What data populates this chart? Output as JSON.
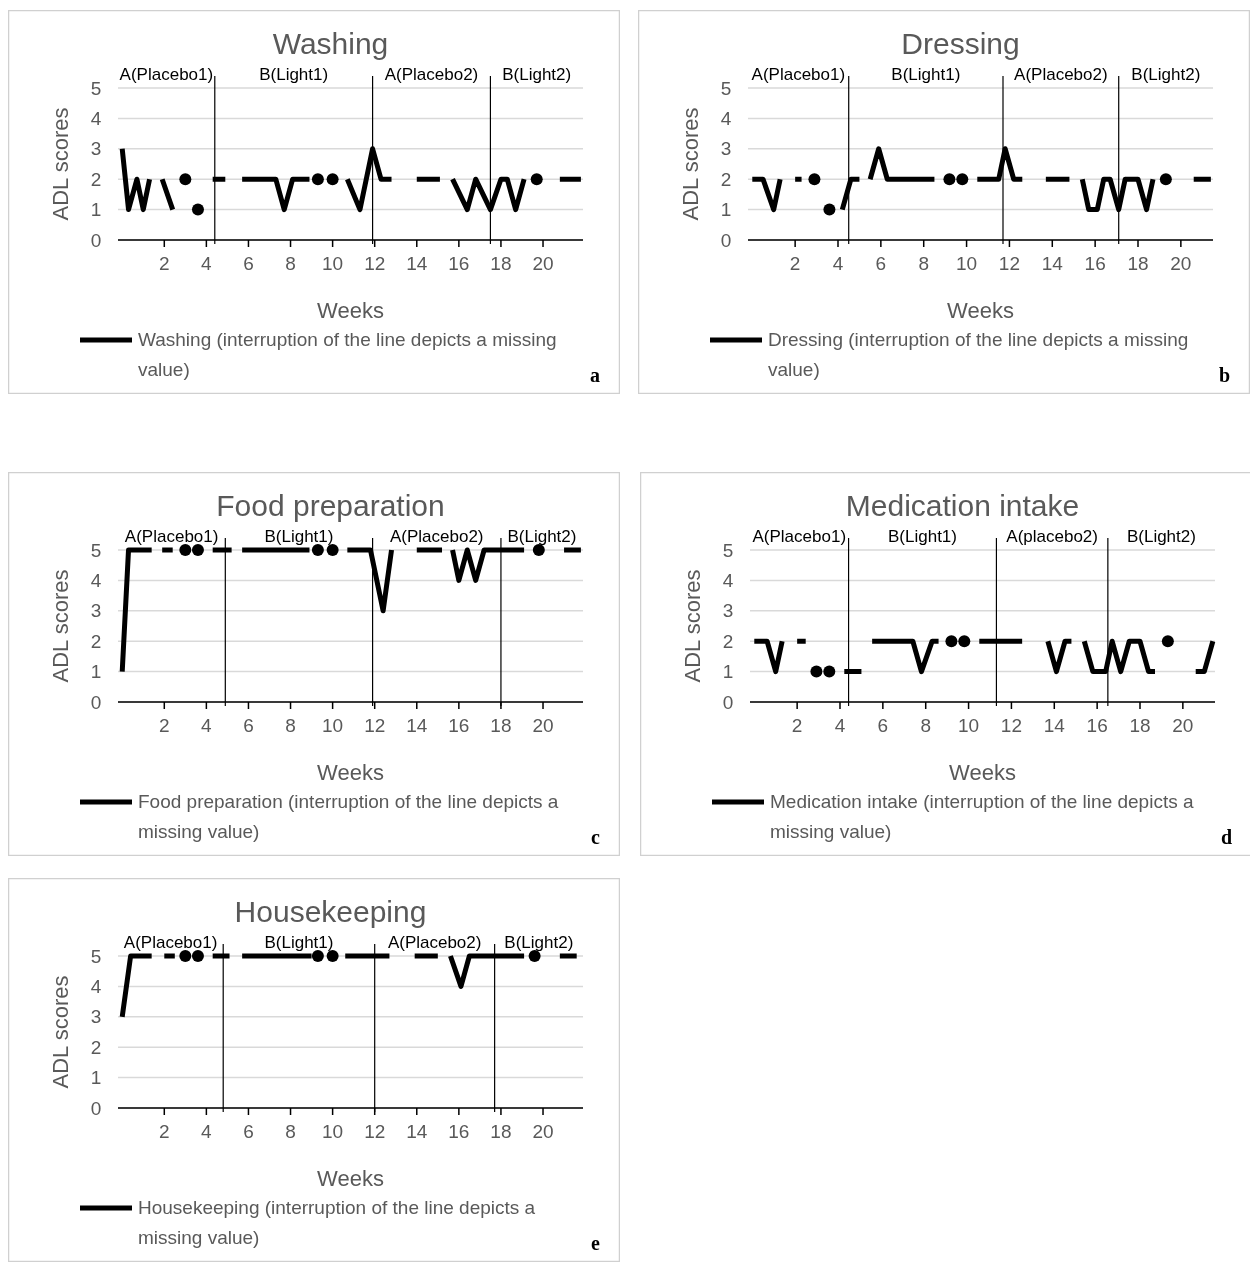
{
  "chart_data": [
    {
      "type": "line",
      "title": "Washing",
      "xlabel": "Weeks",
      "ylabel": "ADL scores",
      "xlim": [
        -0.2,
        21.9
      ],
      "ylim": [
        0,
        5
      ],
      "xticks": [
        2,
        4,
        6,
        8,
        10,
        12,
        14,
        16,
        18,
        20
      ],
      "yticks": [
        0,
        1,
        2,
        3,
        4,
        5
      ],
      "grid": "y",
      "legend": "bottom",
      "series": [
        {
          "name": "Washing (interruption of the line depicts a missing value)",
          "color": "#000000",
          "x": [
            0,
            0.3,
            0.7,
            1.0,
            1.3,
            1.6,
            1.9,
            2.4,
            2.7,
            3.0,
            3.3,
            3.6,
            4.0,
            4.3,
            4.9,
            5.3,
            5.7,
            7.3,
            7.7,
            8.1,
            8.9,
            9.1,
            9.3,
            9.6,
            10.0,
            10.3,
            10.7,
            11.3,
            11.9,
            12.3,
            12.8,
            13.4,
            14.0,
            15.1,
            15.4,
            15.7,
            16.4,
            16.8,
            17.5,
            18.0,
            18.3,
            18.7,
            19.1,
            19.4,
            19.7,
            20.2,
            20.8,
            21.8
          ],
          "values": [
            3,
            1,
            2,
            1,
            2,
            null,
            2,
            1,
            null,
            2,
            null,
            1,
            null,
            2,
            2,
            null,
            2,
            2,
            1,
            2,
            2,
            null,
            2,
            null,
            2,
            null,
            2,
            1,
            3,
            2,
            2,
            null,
            2,
            2,
            null,
            2,
            1,
            2,
            1,
            2,
            2,
            1,
            2,
            null,
            2,
            null,
            2,
            2
          ]
        }
      ],
      "ref_lines": [
        {
          "axis": "x",
          "value": 4.4,
          "color": "#000000"
        },
        {
          "axis": "x",
          "value": 11.9,
          "color": "#000000"
        },
        {
          "axis": "x",
          "value": 17.5,
          "color": "#000000"
        }
      ],
      "annotations": [
        "A(Placebo1)",
        "B(Light1)",
        "A(Placebo2)",
        "B(Light2)",
        "a"
      ]
    },
    {
      "type": "line",
      "title": "Dressing",
      "xlabel": "Weeks",
      "ylabel": "ADL scores",
      "xlim": [
        -0.2,
        21.5
      ],
      "ylim": [
        0,
        5
      ],
      "xticks": [
        2,
        4,
        6,
        8,
        10,
        12,
        14,
        16,
        18,
        20
      ],
      "yticks": [
        0,
        1,
        2,
        3,
        4,
        5
      ],
      "grid": "y",
      "legend": "bottom",
      "series": [
        {
          "name": "Dressing (interruption of the line depicts a missing value)",
          "color": "#000000",
          "x": [
            0,
            0.5,
            1.0,
            1.3,
            1.6,
            2.0,
            2.3,
            2.6,
            2.9,
            3.2,
            3.6,
            3.9,
            4.2,
            4.6,
            5.0,
            5.3,
            5.5,
            5.9,
            6.3,
            8.5,
            8.9,
            9.2,
            9.5,
            9.8,
            10.2,
            10.5,
            11.5,
            11.8,
            12.2,
            12.6,
            13.2,
            13.7,
            14.8,
            15.1,
            15.4,
            15.7,
            16.1,
            16.4,
            16.7,
            17.1,
            17.4,
            18.0,
            18.4,
            18.7,
            19.0,
            19.3,
            20.0,
            20.6,
            21.4
          ],
          "values": [
            2,
            2,
            1,
            2,
            null,
            2,
            2,
            null,
            2,
            null,
            1,
            null,
            1,
            2,
            2,
            null,
            2,
            3,
            2,
            2,
            null,
            2,
            null,
            2,
            null,
            2,
            2,
            3,
            2,
            2,
            null,
            2,
            2,
            null,
            2,
            1,
            1,
            2,
            2,
            1,
            2,
            2,
            1,
            2,
            null,
            2,
            null,
            2,
            2
          ]
        }
      ],
      "ref_lines": [
        {
          "axis": "x",
          "value": 4.5,
          "color": "#000000"
        },
        {
          "axis": "x",
          "value": 11.7,
          "color": "#000000"
        },
        {
          "axis": "x",
          "value": 17.1,
          "color": "#000000"
        }
      ],
      "annotations": [
        "A(Placebo1)",
        "B(Light1)",
        "A(Placebo2)",
        "B(Light2)",
        "b"
      ]
    },
    {
      "type": "line",
      "title": "Food preparation",
      "xlabel": "Weeks",
      "ylabel": "ADL scores",
      "xlim": [
        -0.2,
        21.9
      ],
      "ylim": [
        0,
        5
      ],
      "xticks": [
        2,
        4,
        6,
        8,
        10,
        12,
        14,
        16,
        18,
        20
      ],
      "yticks": [
        0,
        1,
        2,
        3,
        4,
        5
      ],
      "grid": "y",
      "legend": "bottom",
      "series": [
        {
          "name": "Food preparation (interruption of the line depicts a missing value)",
          "color": "#000000",
          "x": [
            0,
            0.3,
            1.4,
            1.65,
            1.9,
            2.4,
            2.7,
            3.0,
            3.3,
            3.6,
            4.0,
            4.3,
            5.2,
            5.45,
            5.7,
            8.9,
            9.1,
            9.3,
            9.6,
            10.0,
            10.3,
            10.7,
            11.8,
            12.4,
            12.8,
            13.4,
            14.0,
            15.2,
            15.45,
            15.7,
            16.0,
            16.4,
            16.8,
            17.2,
            19.1,
            19.45,
            19.8,
            20.4,
            21.0,
            21.8
          ],
          "values": [
            1,
            5,
            5,
            null,
            5,
            5,
            null,
            5,
            null,
            5,
            null,
            5,
            5,
            null,
            5,
            5,
            null,
            5,
            null,
            5,
            null,
            5,
            5,
            3,
            5,
            null,
            5,
            5,
            null,
            5,
            4,
            5,
            4,
            5,
            5,
            null,
            5,
            null,
            5,
            5
          ]
        }
      ],
      "ref_lines": [
        {
          "axis": "x",
          "value": 4.9,
          "color": "#000000"
        },
        {
          "axis": "x",
          "value": 11.9,
          "color": "#000000"
        },
        {
          "axis": "x",
          "value": 18.0,
          "color": "#000000"
        }
      ],
      "annotations": [
        "A(Placebo1)",
        "B(Light1)",
        "A(Placebo2)",
        "B(Light2)",
        "c"
      ]
    },
    {
      "type": "line",
      "title": "Medication intake",
      "xlabel": "Weeks",
      "ylabel": "ADL scores",
      "xlim": [
        -0.2,
        21.5
      ],
      "ylim": [
        0,
        5
      ],
      "xticks": [
        2,
        4,
        6,
        8,
        10,
        12,
        14,
        16,
        18,
        20
      ],
      "yticks": [
        0,
        1,
        2,
        3,
        4,
        5
      ],
      "grid": "y",
      "legend": "bottom",
      "series": [
        {
          "name": "Medication intake (interruption of the line depicts a missing value)",
          "color": "#000000",
          "x": [
            0,
            0.6,
            1.0,
            1.3,
            1.6,
            2.0,
            2.4,
            2.6,
            2.9,
            3.2,
            3.5,
            3.8,
            4.2,
            5.0,
            5.2,
            5.5,
            7.4,
            7.8,
            8.3,
            8.6,
            8.9,
            9.2,
            9.5,
            9.8,
            10.2,
            10.5,
            12.5,
            13.1,
            13.7,
            14.1,
            14.5,
            14.8,
            15.1,
            15.4,
            15.8,
            16.4,
            16.7,
            17.1,
            17.5,
            18.0,
            18.4,
            18.7,
            19.0,
            19.3,
            20.0,
            20.6,
            21.0,
            21.4
          ],
          "values": [
            2,
            2,
            1,
            2,
            null,
            2,
            2,
            null,
            1,
            null,
            1,
            null,
            1,
            1,
            null,
            2,
            2,
            1,
            2,
            2,
            null,
            2,
            null,
            2,
            null,
            2,
            2,
            null,
            2,
            1,
            2,
            2,
            null,
            2,
            1,
            1,
            2,
            1,
            2,
            2,
            1,
            1,
            null,
            2,
            null,
            1,
            1,
            2
          ]
        }
      ],
      "ref_lines": [
        {
          "axis": "x",
          "value": 4.4,
          "color": "#000000"
        },
        {
          "axis": "x",
          "value": 11.3,
          "color": "#000000"
        },
        {
          "axis": "x",
          "value": 16.5,
          "color": "#000000"
        }
      ],
      "annotations": [
        "A(Placebo1)",
        "B(Light1)",
        "A(placebo2)",
        "B(Light2)",
        "d"
      ]
    },
    {
      "type": "line",
      "title": "Housekeeping",
      "xlabel": "Weeks",
      "ylabel": "ADL scores",
      "xlim": [
        -0.2,
        21.9
      ],
      "ylim": [
        0,
        5
      ],
      "xticks": [
        2,
        4,
        6,
        8,
        10,
        12,
        14,
        16,
        18,
        20
      ],
      "yticks": [
        0,
        1,
        2,
        3,
        4,
        5
      ],
      "grid": "y",
      "legend": "bottom",
      "series": [
        {
          "name": "Housekeeping (interruption of the line depicts a missing value)",
          "color": "#000000",
          "x": [
            0,
            0.4,
            1.4,
            1.7,
            2.0,
            2.5,
            2.75,
            3.0,
            3.3,
            3.6,
            3.95,
            4.3,
            5.1,
            5.4,
            5.7,
            9.0,
            9.15,
            9.3,
            9.65,
            10.0,
            10.3,
            10.6,
            12.7,
            13.3,
            13.9,
            15.0,
            15.3,
            15.6,
            16.1,
            16.5,
            19.1,
            19.35,
            19.6,
            20.2,
            20.8,
            21.6
          ],
          "values": [
            3,
            5,
            5,
            null,
            5,
            5,
            null,
            5,
            null,
            5,
            null,
            5,
            5,
            null,
            5,
            5,
            null,
            5,
            null,
            5,
            null,
            5,
            5,
            null,
            5,
            5,
            null,
            5,
            4,
            5,
            5,
            null,
            5,
            null,
            5,
            5
          ]
        }
      ],
      "ref_lines": [
        {
          "axis": "x",
          "value": 4.8,
          "color": "#000000"
        },
        {
          "axis": "x",
          "value": 12.0,
          "color": "#000000"
        },
        {
          "axis": "x",
          "value": 17.7,
          "color": "#000000"
        }
      ],
      "annotations": [
        "A(Placebo1)",
        "B(Light1)",
        "A(Placebo2)",
        "B(Light2)",
        "e"
      ]
    }
  ]
}
